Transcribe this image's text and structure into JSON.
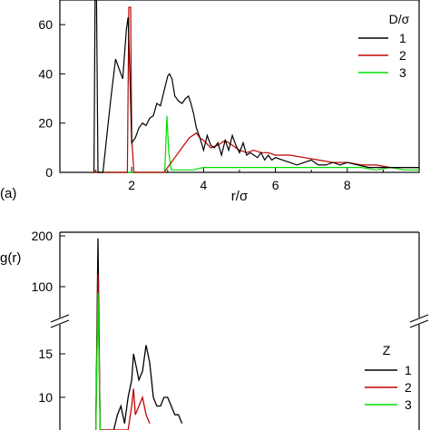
{
  "chart_data": [
    {
      "type": "line",
      "panel_label": "(a)",
      "xlabel": "r/σ",
      "ylabel": "",
      "xlim": [
        0,
        10
      ],
      "ylim": [
        0,
        70
      ],
      "x_ticks": [
        "2",
        "4",
        "6",
        "8"
      ],
      "y_ticks": [
        "0",
        "20",
        "40",
        "60"
      ],
      "legend_title": "D/σ",
      "legend_position": "top-right",
      "series": [
        {
          "name": "1",
          "color": "#000000",
          "points": [
            [
              0.95,
              0
            ],
            [
              0.98,
              70
            ],
            [
              1.02,
              70
            ],
            [
              1.06,
              0
            ],
            [
              1.2,
              0
            ],
            [
              1.3,
              14
            ],
            [
              1.42,
              30
            ],
            [
              1.55,
              46
            ],
            [
              1.65,
              42
            ],
            [
              1.75,
              38
            ],
            [
              1.85,
              58
            ],
            [
              1.9,
              63
            ],
            [
              1.95,
              40
            ],
            [
              2.0,
              12
            ],
            [
              2.1,
              14
            ],
            [
              2.2,
              18
            ],
            [
              2.3,
              20
            ],
            [
              2.4,
              19
            ],
            [
              2.5,
              22
            ],
            [
              2.6,
              23
            ],
            [
              2.7,
              28
            ],
            [
              2.8,
              27
            ],
            [
              2.9,
              33
            ],
            [
              2.95,
              36
            ],
            [
              3.0,
              39
            ],
            [
              3.05,
              40
            ],
            [
              3.12,
              38
            ],
            [
              3.2,
              31
            ],
            [
              3.3,
              29
            ],
            [
              3.4,
              28
            ],
            [
              3.5,
              30
            ],
            [
              3.58,
              31
            ],
            [
              3.65,
              28
            ],
            [
              3.72,
              24
            ],
            [
              3.8,
              18
            ],
            [
              3.9,
              14
            ],
            [
              4.0,
              9
            ],
            [
              4.1,
              15
            ],
            [
              4.2,
              11
            ],
            [
              4.3,
              10
            ],
            [
              4.4,
              12
            ],
            [
              4.5,
              7
            ],
            [
              4.6,
              13
            ],
            [
              4.7,
              9
            ],
            [
              4.8,
              15
            ],
            [
              4.9,
              11
            ],
            [
              5.0,
              8
            ],
            [
              5.1,
              12
            ],
            [
              5.2,
              7
            ],
            [
              5.3,
              8
            ],
            [
              5.4,
              7
            ],
            [
              5.5,
              6
            ],
            [
              5.6,
              8
            ],
            [
              5.7,
              5
            ],
            [
              5.8,
              7
            ],
            [
              5.9,
              5
            ],
            [
              6.0,
              6
            ],
            [
              6.2,
              5
            ],
            [
              6.4,
              4
            ],
            [
              6.6,
              3
            ],
            [
              6.8,
              4
            ],
            [
              7.0,
              5
            ],
            [
              7.2,
              3
            ],
            [
              7.4,
              3
            ],
            [
              7.6,
              4
            ],
            [
              7.8,
              3
            ],
            [
              8.0,
              4
            ],
            [
              8.3,
              3
            ],
            [
              8.6,
              2
            ],
            [
              9.0,
              2
            ],
            [
              9.4,
              2
            ],
            [
              10.0,
              2
            ]
          ]
        },
        {
          "name": "2",
          "color": "#c00000",
          "points": [
            [
              0.9,
              0
            ],
            [
              1.88,
              0
            ],
            [
              1.92,
              67
            ],
            [
              1.97,
              67
            ],
            [
              2.0,
              14
            ],
            [
              2.06,
              0
            ],
            [
              2.9,
              0
            ],
            [
              3.0,
              2
            ],
            [
              3.2,
              6
            ],
            [
              3.4,
              10
            ],
            [
              3.6,
              14
            ],
            [
              3.8,
              16
            ],
            [
              3.9,
              14
            ],
            [
              4.0,
              13
            ],
            [
              4.2,
              10
            ],
            [
              4.4,
              11
            ],
            [
              4.6,
              13
            ],
            [
              4.8,
              11
            ],
            [
              5.0,
              9
            ],
            [
              5.2,
              8
            ],
            [
              5.4,
              9
            ],
            [
              5.6,
              8
            ],
            [
              5.8,
              8
            ],
            [
              6.0,
              7
            ],
            [
              6.4,
              7
            ],
            [
              6.8,
              6
            ],
            [
              7.2,
              5
            ],
            [
              7.6,
              4
            ],
            [
              8.0,
              4
            ],
            [
              8.4,
              3
            ],
            [
              8.8,
              3
            ],
            [
              9.2,
              2
            ],
            [
              9.6,
              2
            ],
            [
              10.0,
              2
            ]
          ]
        },
        {
          "name": "3",
          "color": "#00dd00",
          "points": [
            [
              0.9,
              0
            ],
            [
              2.92,
              0
            ],
            [
              2.98,
              23
            ],
            [
              3.03,
              8
            ],
            [
              3.1,
              1
            ],
            [
              3.4,
              1
            ],
            [
              3.7,
              1
            ],
            [
              4.0,
              2
            ],
            [
              4.4,
              2
            ],
            [
              4.8,
              2
            ],
            [
              5.2,
              2
            ],
            [
              5.6,
              2
            ],
            [
              6.0,
              2
            ],
            [
              6.4,
              2
            ],
            [
              6.8,
              2
            ],
            [
              7.2,
              2
            ],
            [
              7.6,
              2
            ],
            [
              8.0,
              2
            ],
            [
              8.4,
              2
            ],
            [
              8.8,
              1
            ],
            [
              9.2,
              2
            ],
            [
              9.6,
              1
            ],
            [
              10.0,
              1
            ]
          ]
        }
      ]
    },
    {
      "type": "line",
      "ylabel": "g(r)",
      "y_ticks": [
        "200",
        "100",
        "15",
        "10"
      ],
      "y_axis_break": true,
      "legend_title": "Z",
      "legend_position": "right",
      "series": [
        {
          "name": "1",
          "color": "#000000",
          "points": [
            [
              1.0,
              0
            ],
            [
              1.06,
              195
            ],
            [
              1.12,
              0
            ],
            [
              1.5,
              5
            ],
            [
              1.6,
              8
            ],
            [
              1.7,
              9
            ],
            [
              1.8,
              7
            ],
            [
              1.9,
              10
            ],
            [
              2.0,
              12
            ],
            [
              2.05,
              15
            ],
            [
              2.1,
              14
            ],
            [
              2.2,
              12
            ],
            [
              2.3,
              13
            ],
            [
              2.4,
              16
            ],
            [
              2.5,
              14
            ],
            [
              2.6,
              10
            ],
            [
              2.7,
              9
            ],
            [
              2.8,
              9
            ],
            [
              2.9,
              10
            ],
            [
              3.0,
              10
            ],
            [
              3.1,
              9
            ],
            [
              3.2,
              8
            ],
            [
              3.3,
              8
            ],
            [
              3.4,
              7
            ]
          ]
        },
        {
          "name": "2",
          "color": "#c00000",
          "points": [
            [
              1.0,
              0
            ],
            [
              1.06,
              125
            ],
            [
              1.12,
              0
            ],
            [
              1.8,
              5
            ],
            [
              1.9,
              6
            ],
            [
              2.0,
              9
            ],
            [
              2.05,
              11
            ],
            [
              2.1,
              8
            ],
            [
              2.2,
              9
            ],
            [
              2.3,
              10
            ],
            [
              2.35,
              9
            ],
            [
              2.4,
              8
            ],
            [
              2.5,
              7
            ]
          ]
        },
        {
          "name": "3",
          "color": "#00dd00",
          "points": [
            [
              1.0,
              0
            ],
            [
              1.06,
              88
            ],
            [
              1.12,
              0
            ]
          ]
        }
      ]
    }
  ]
}
